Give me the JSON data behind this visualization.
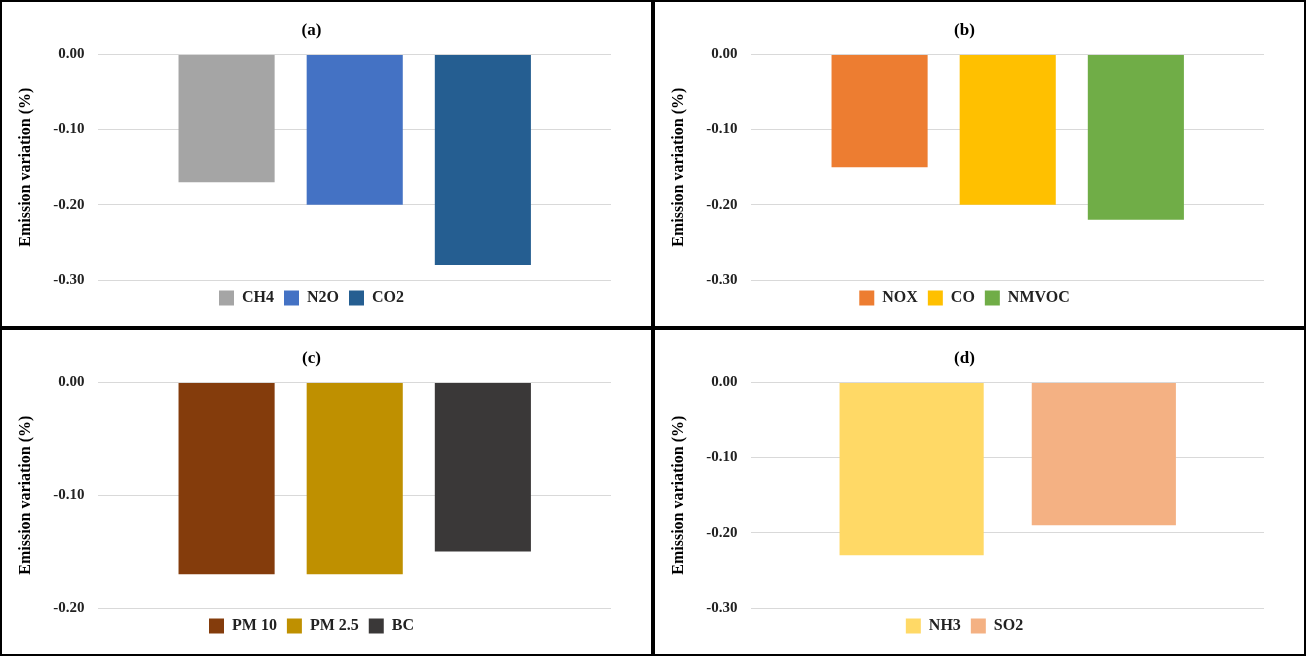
{
  "chart_data": [
    {
      "type": "bar",
      "title": "(a)",
      "ylabel": "Emission variation (%)",
      "categories": [
        null
      ],
      "series": [
        {
          "name": "CH4",
          "color": "#a5a5a5",
          "values": [
            -0.17
          ]
        },
        {
          "name": "N2O",
          "color": "#4472c4",
          "values": [
            -0.2
          ]
        },
        {
          "name": "CO2",
          "color": "#255e91",
          "values": [
            -0.28
          ]
        }
      ],
      "ylim": [
        -0.3,
        0
      ],
      "yticks": [
        {
          "value": 0,
          "label": "0.00"
        },
        {
          "value": -0.1,
          "label": "-0.10"
        },
        {
          "value": -0.2,
          "label": "-0.20"
        },
        {
          "value": -0.3,
          "label": "-0.30"
        }
      ],
      "grid": "y",
      "legend": "bottom",
      "tick_labels": "y"
    },
    {
      "type": "bar",
      "title": "(b)",
      "ylabel": "Emission variation (%)",
      "categories": [
        null
      ],
      "series": [
        {
          "name": "NOX",
          "color": "#ed7d31",
          "values": [
            -0.15
          ]
        },
        {
          "name": "CO",
          "color": "#ffc000",
          "values": [
            -0.2
          ]
        },
        {
          "name": "NMVOC",
          "color": "#70ad47",
          "values": [
            -0.22
          ]
        }
      ],
      "ylim": [
        -0.3,
        0
      ],
      "yticks": [
        {
          "value": 0,
          "label": "0.00"
        },
        {
          "value": -0.1,
          "label": "-0.10"
        },
        {
          "value": -0.2,
          "label": "-0.20"
        },
        {
          "value": -0.3,
          "label": "-0.30"
        }
      ],
      "grid": "y",
      "legend": "bottom",
      "tick_labels": "y"
    },
    {
      "type": "bar",
      "title": "(c)",
      "ylabel": "Emission variation (%)",
      "categories": [
        null
      ],
      "series": [
        {
          "name": "PM 10",
          "color": "#843c0c",
          "values": [
            -0.17
          ]
        },
        {
          "name": "PM 2.5",
          "color": "#bf9000",
          "values": [
            -0.17
          ]
        },
        {
          "name": "BC",
          "color": "#3a3838",
          "values": [
            -0.15
          ]
        }
      ],
      "ylim": [
        -0.2,
        0
      ],
      "yticks": [
        {
          "value": 0,
          "label": "0.00"
        },
        {
          "value": -0.1,
          "label": "-0.10"
        },
        {
          "value": -0.2,
          "label": "-0.20"
        }
      ],
      "grid": "y",
      "legend": "bottom",
      "tick_labels": "y"
    },
    {
      "type": "bar",
      "title": "(d)",
      "ylabel": "Emission variation (%)",
      "categories": [
        null
      ],
      "series": [
        {
          "name": "NH3",
          "color": "#ffd966",
          "values": [
            -0.23
          ]
        },
        {
          "name": "SO2",
          "color": "#f4b183",
          "values": [
            -0.19
          ]
        }
      ],
      "ylim": [
        -0.3,
        0
      ],
      "yticks": [
        {
          "value": 0,
          "label": "0.00"
        },
        {
          "value": -0.1,
          "label": "-0.10"
        },
        {
          "value": -0.2,
          "label": "-0.20"
        },
        {
          "value": -0.3,
          "label": "-0.30"
        }
      ],
      "grid": "y",
      "legend": "bottom",
      "tick_labels": "y"
    }
  ]
}
